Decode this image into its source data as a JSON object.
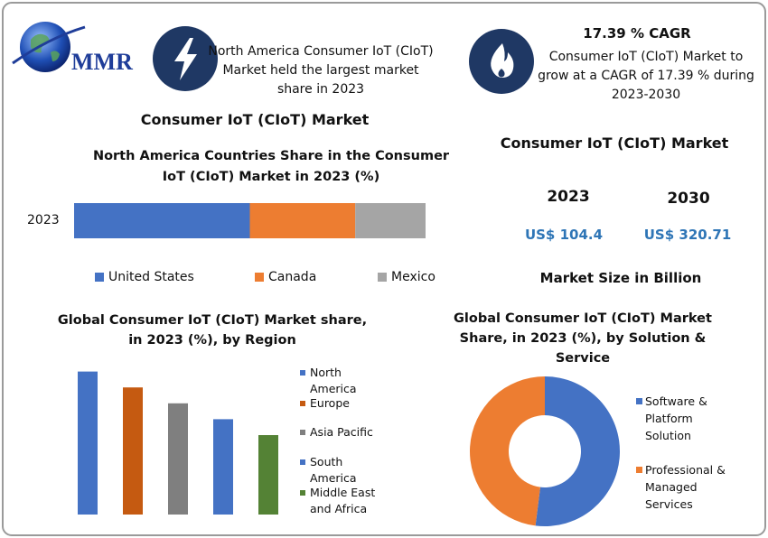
{
  "logo": "MMR",
  "header": {
    "left_note": "North America Consumer IoT (CIoT) Market held the largest market share in 2023",
    "cagr_title": "17.39 % CAGR",
    "cagr_note": "Consumer IoT (CIoT) Market to grow at a CAGR of 17.39 % during 2023-2030"
  },
  "section_title": "Consumer IoT (CIoT) Market",
  "market_size": {
    "title": "Consumer IoT (CIoT) Market",
    "years": [
      "2023",
      "2030"
    ],
    "values": [
      "US$ 104.4",
      "US$ 320.71"
    ],
    "caption": "Market Size in Billion"
  },
  "chart_data": [
    {
      "type": "stacked-bar-h",
      "title": "North America Countries Share in the Consumer IoT (CIoT) Market in 2023 (%)",
      "categories": [
        "2023"
      ],
      "series": [
        {
          "name": "United States",
          "color": "#4472c4",
          "values": [
            50
          ]
        },
        {
          "name": "Canada",
          "color": "#ed7d31",
          "values": [
            30
          ]
        },
        {
          "name": "Mexico",
          "color": "#a5a5a5",
          "values": [
            20
          ]
        }
      ],
      "xlim": [
        0,
        100
      ]
    },
    {
      "type": "bar",
      "title": "Global Consumer IoT (CIoT) Market share, in 2023 (%), by Region",
      "categories": [
        "North America",
        "Europe",
        "Asia Pacific",
        "South America",
        "Middle East and Africa"
      ],
      "values": [
        36,
        32,
        28,
        24,
        20
      ],
      "colors": [
        "#4472c4",
        "#c55a11",
        "#7f7f7f",
        "#4472c4",
        "#548235"
      ],
      "ylim": [
        0,
        40
      ]
    },
    {
      "type": "donut",
      "title": "Global Consumer IoT (CIoT) Market Share, in 2023 (%), by Solution & Service",
      "categories": [
        "Software & Platform Solution",
        "Professional & Managed Services"
      ],
      "values": [
        52,
        48
      ],
      "colors": [
        "#4472c4",
        "#ed7d31"
      ]
    }
  ]
}
